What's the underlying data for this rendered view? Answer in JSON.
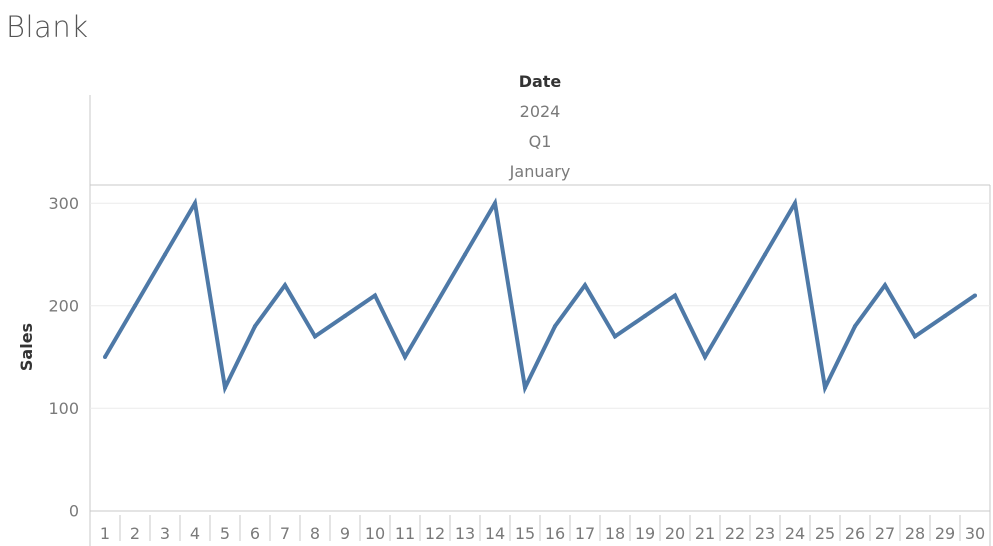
{
  "sheet": {
    "title": "Blank"
  },
  "chart_data": {
    "type": "line",
    "header": {
      "title": "Date",
      "levels": [
        "2024",
        "Q1",
        "January"
      ]
    },
    "ylabel": "Sales",
    "ylim": [
      0,
      320
    ],
    "y_ticks": [
      "300",
      "200",
      "100",
      "0"
    ],
    "y_tick_values": [
      300,
      200,
      100,
      0
    ],
    "x": [
      1,
      2,
      3,
      4,
      5,
      6,
      7,
      8,
      9,
      10,
      11,
      12,
      13,
      14,
      15,
      16,
      17,
      18,
      19,
      20,
      21,
      22,
      23,
      24,
      25,
      26,
      27,
      28,
      29,
      30
    ],
    "x_tick_labels": [
      "1",
      "2",
      "3",
      "4",
      "5",
      "6",
      "7",
      "8",
      "9",
      "10",
      "11",
      "12",
      "13",
      "14",
      "15",
      "16",
      "17",
      "18",
      "19",
      "20",
      "21",
      "22",
      "23",
      "24",
      "25",
      "26",
      "27",
      "28",
      "29",
      "30"
    ],
    "series": [
      {
        "values": [
          150,
          200,
          250,
          300,
          120,
          180,
          220,
          170,
          190,
          210,
          150,
          200,
          250,
          300,
          120,
          180,
          220,
          170,
          190,
          210,
          150,
          200,
          250,
          300,
          120,
          180,
          220,
          170,
          190,
          210
        ],
        "color": "#4e79a7"
      }
    ],
    "grid": true,
    "gridline_color": "#ebebeb",
    "axis_color": "#c8c8c8"
  }
}
